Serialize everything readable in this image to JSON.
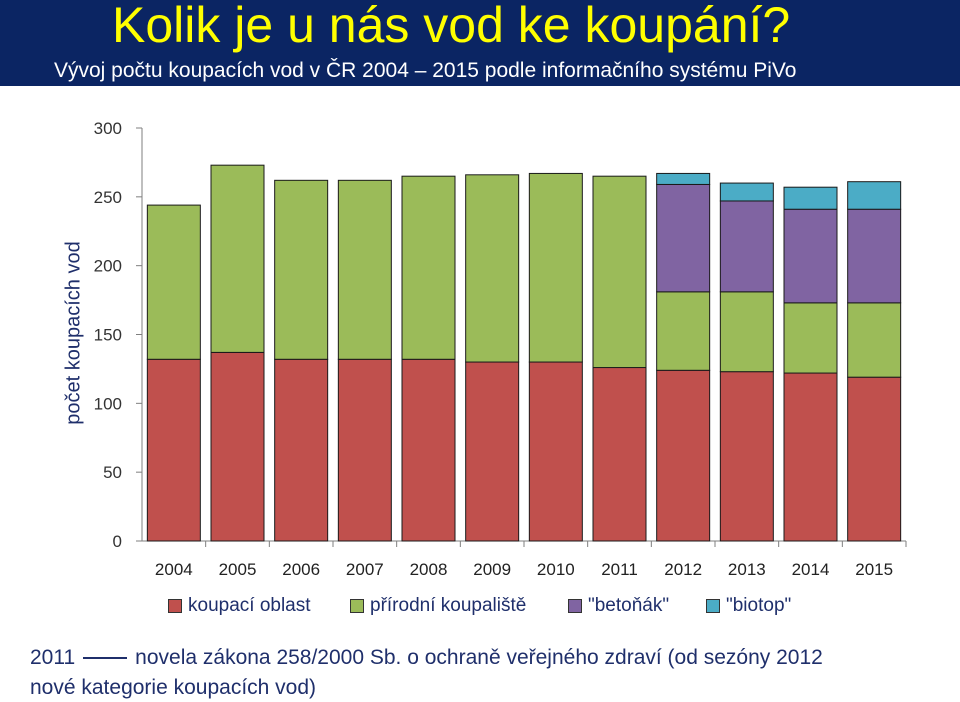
{
  "header": {
    "title": "Kolik je u nás vod ke koupání?",
    "subtitle": "Vývoj počtu koupacích vod v ČR 2004 – 2015 podle informačního systému PiVo"
  },
  "chart_data": {
    "type": "bar",
    "stacked": true,
    "title": "",
    "xlabel": "",
    "ylabel": "počet koupacích vod",
    "ylim": [
      0,
      300
    ],
    "yticks": [
      0,
      50,
      100,
      150,
      200,
      250,
      300
    ],
    "categories": [
      "2004",
      "2005",
      "2006",
      "2007",
      "2008",
      "2009",
      "2010",
      "2011",
      "2012",
      "2013",
      "2014",
      "2015"
    ],
    "series": [
      {
        "name": "koupací oblast",
        "color": "#c0504d",
        "values": [
          132,
          137,
          132,
          132,
          132,
          130,
          130,
          126,
          124,
          123,
          122,
          119
        ]
      },
      {
        "name": "přírodní koupaliště",
        "color": "#9bbb59",
        "values": [
          112,
          136,
          130,
          130,
          133,
          136,
          137,
          139,
          57,
          58,
          51,
          54
        ]
      },
      {
        "name": "\"betoňák\"",
        "color": "#8064a2",
        "values": [
          0,
          0,
          0,
          0,
          0,
          0,
          0,
          0,
          78,
          66,
          68,
          68
        ]
      },
      {
        "name": "\"biotop\"",
        "color": "#4bacc6",
        "values": [
          0,
          0,
          0,
          0,
          0,
          0,
          0,
          0,
          8,
          13,
          16,
          20
        ]
      }
    ],
    "grid": false,
    "legend_position": "bottom"
  },
  "notes": {
    "line1_year": "2011",
    "line1_text": "novela zákona 258/2000 Sb. o ochraně veřejného zdraví (od sezóny 2012",
    "line2_text": "nové kategorie koupacích vod)"
  }
}
